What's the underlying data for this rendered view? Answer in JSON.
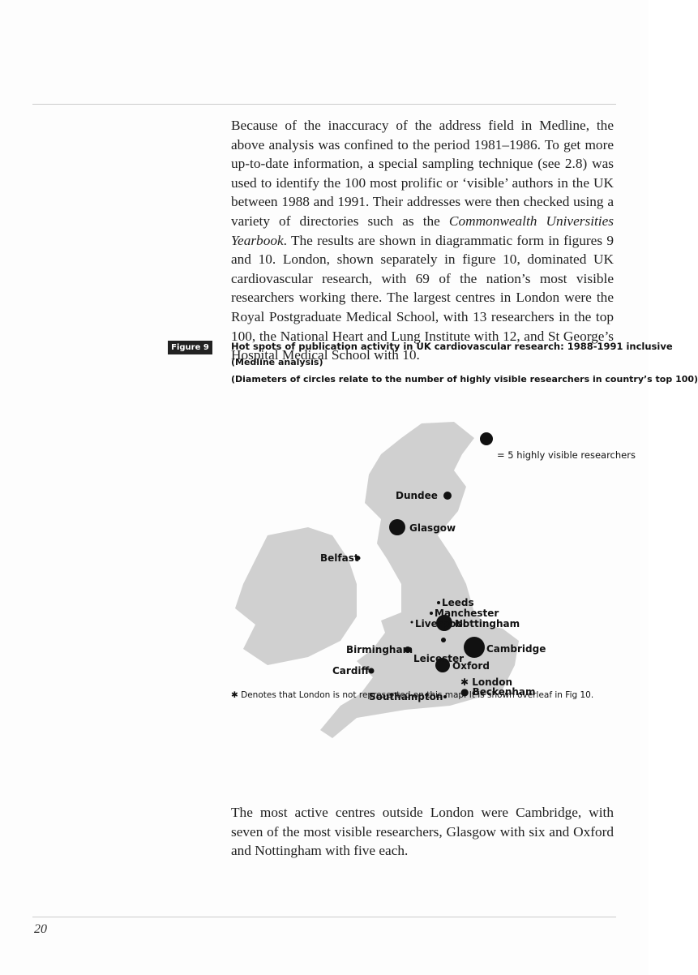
{
  "body": {
    "intro": {
      "before": "Because of the inaccuracy of the address field in Medline, the above analysis was confined to the period 1981–1986. To get more up-to-date information, a special sampling technique (see 2.8) was used to identify the 100 most prolific or ‘visible’ authors in the UK between 1988 and 1991. Their addresses were then checked using a variety of directories such as the ",
      "italic": "Commonwealth Universities Yearbook",
      "after": ". The results are shown in diagrammatic form in figures 9 and 10. London, shown separately in figure 10, dominated UK cardiovascular research, with 69 of the nation’s most visible researchers working there. The largest centres in London were the Royal Postgraduate Medical School, with 13 researchers in the top 100, the National Heart and Lung Institute with 12, and St George’s Hospital Medical School with 10."
    },
    "closing": "The most active centres outside London were Cambridge, with seven of the most visible researchers, Glasgow with six and Oxford and Nottingham with five each."
  },
  "figure": {
    "label": "Figure 9",
    "title": "Hot spots of publication activity in UK cardiovascular research: 1988-1991 inclusive",
    "subtitle": "(Medline analysis)",
    "note": "(Diameters of circles relate to the number of highly visible researchers in country’s top 100)",
    "legend": "= 5 highly visible researchers",
    "places": [
      "Dundee",
      "Glasgow",
      "Belfast",
      "Leeds",
      "Manchester",
      "Liverpool",
      "Nottingham",
      "Birmingham",
      "Leicester",
      "Cambridge",
      "Cardiff",
      "Oxford",
      "✱ London",
      "● Beckenham",
      "Southampton"
    ],
    "footnote": "✱ Denotes that London is not represented on this map. It is shown overleaf in Fig 10."
  },
  "footer": {
    "page_number": "20"
  }
}
